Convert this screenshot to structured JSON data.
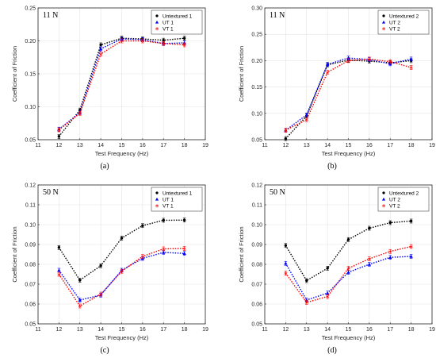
{
  "chart_data": [
    {
      "type": "line",
      "panel_label": "(a)",
      "annotation": "11 N",
      "xlabel": "Test Frequency (Hz)",
      "ylabel": "Coefficient of Friction",
      "xlim": [
        11,
        19
      ],
      "ylim": [
        0.05,
        0.25
      ],
      "xticks": [
        "11",
        "12",
        "13",
        "14",
        "15",
        "16",
        "17",
        "18",
        "19"
      ],
      "yticks": [
        "0.05",
        "0.10",
        "0.15",
        "0.20",
        "0.25"
      ],
      "grid": true,
      "legend_position": "top-right",
      "x": [
        12,
        13,
        14,
        15,
        16,
        17,
        18
      ],
      "series": [
        {
          "name": "Untextured 1",
          "color": "#000000",
          "marker": "circle",
          "values": [
            0.055,
            0.095,
            0.194,
            0.204,
            0.203,
            0.201,
            0.204
          ]
        },
        {
          "name": "UT 1",
          "color": "#0000ff",
          "marker": "triangle",
          "values": [
            0.066,
            0.091,
            0.188,
            0.203,
            0.202,
            0.196,
            0.197
          ]
        },
        {
          "name": "VT 1",
          "color": "#ff0000",
          "marker": "star",
          "values": [
            0.065,
            0.09,
            0.18,
            0.2,
            0.2,
            0.196,
            0.194
          ]
        }
      ]
    },
    {
      "type": "line",
      "panel_label": "(b)",
      "annotation": "11 N",
      "xlabel": "Test Frequency (Hz)",
      "ylabel": "Coefficient of Friction",
      "xlim": [
        11,
        19
      ],
      "ylim": [
        0.05,
        0.3
      ],
      "xticks": [
        "11",
        "12",
        "13",
        "14",
        "15",
        "16",
        "17",
        "18",
        "19"
      ],
      "yticks": [
        "0.05",
        "0.10",
        "0.15",
        "0.20",
        "0.25",
        "0.30"
      ],
      "grid": true,
      "legend_position": "top-right",
      "x": [
        12,
        13,
        14,
        15,
        16,
        17,
        18
      ],
      "series": [
        {
          "name": "Untextured 2",
          "color": "#000000",
          "marker": "circle",
          "values": [
            0.052,
            0.095,
            0.192,
            0.201,
            0.199,
            0.196,
            0.2
          ]
        },
        {
          "name": "UT 2",
          "color": "#0000ff",
          "marker": "triangle",
          "values": [
            0.068,
            0.097,
            0.193,
            0.205,
            0.202,
            0.194,
            0.203
          ]
        },
        {
          "name": "VT 2",
          "color": "#ff0000",
          "marker": "star",
          "values": [
            0.068,
            0.088,
            0.178,
            0.2,
            0.203,
            0.198,
            0.187
          ]
        }
      ]
    },
    {
      "type": "line",
      "panel_label": "(c)",
      "annotation": "50 N",
      "xlabel": "Test Frequency (Hz)",
      "ylabel": "Coefficient of Friction",
      "xlim": [
        11,
        19
      ],
      "ylim": [
        0.05,
        0.12
      ],
      "xticks": [
        "11",
        "12",
        "13",
        "14",
        "15",
        "16",
        "17",
        "18",
        "19"
      ],
      "yticks": [
        "0.05",
        "0.06",
        "0.07",
        "0.08",
        "0.09",
        "0.10",
        "0.11",
        "0.12"
      ],
      "grid": true,
      "legend_position": "top-right",
      "x": [
        12,
        13,
        14,
        15,
        16,
        17,
        18
      ],
      "series": [
        {
          "name": "Untextured 1",
          "color": "#000000",
          "marker": "circle",
          "values": [
            0.0885,
            0.072,
            0.0793,
            0.0932,
            0.0995,
            0.1022,
            0.1023
          ]
        },
        {
          "name": "UT 1",
          "color": "#0000ff",
          "marker": "triangle",
          "values": [
            0.077,
            0.062,
            0.0645,
            0.077,
            0.083,
            0.086,
            0.0855
          ]
        },
        {
          "name": "VT 1",
          "color": "#ff0000",
          "marker": "star",
          "values": [
            0.075,
            0.059,
            0.065,
            0.0765,
            0.084,
            0.0878,
            0.088
          ]
        }
      ]
    },
    {
      "type": "line",
      "panel_label": "(d)",
      "annotation": "50 N",
      "xlabel": "Test Frequency (Hz)",
      "ylabel": "Coefficient of Friction",
      "xlim": [
        11,
        19
      ],
      "ylim": [
        0.05,
        0.12
      ],
      "xticks": [
        "11",
        "12",
        "13",
        "14",
        "15",
        "16",
        "17",
        "18",
        "19"
      ],
      "yticks": [
        "0.05",
        "0.06",
        "0.07",
        "0.08",
        "0.09",
        "0.10",
        "0.11",
        "0.12"
      ],
      "grid": true,
      "legend_position": "top-right",
      "x": [
        12,
        13,
        14,
        15,
        16,
        17,
        18
      ],
      "series": [
        {
          "name": "Untextured 2",
          "color": "#000000",
          "marker": "circle",
          "values": [
            0.0895,
            0.0718,
            0.078,
            0.0925,
            0.0982,
            0.101,
            0.1018
          ]
        },
        {
          "name": "UT 2",
          "color": "#0000ff",
          "marker": "triangle",
          "values": [
            0.0805,
            0.062,
            0.0655,
            0.076,
            0.08,
            0.0835,
            0.084
          ]
        },
        {
          "name": "VT 2",
          "color": "#ff0000",
          "marker": "star",
          "values": [
            0.0755,
            0.0608,
            0.0638,
            0.078,
            0.0828,
            0.0865,
            0.089
          ]
        }
      ]
    }
  ]
}
